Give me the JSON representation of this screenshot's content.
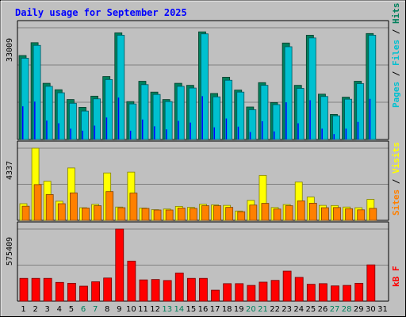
{
  "chart_data": [
    {
      "type": "bar",
      "title": "Daily usage for September 2025",
      "ymax_label": "33009",
      "ylim": [
        0,
        33009
      ],
      "categories": [
        "1",
        "2",
        "3",
        "4",
        "5",
        "6",
        "7",
        "8",
        "9",
        "10",
        "11",
        "12",
        "13",
        "14",
        "15",
        "16",
        "17",
        "18",
        "19",
        "20",
        "21",
        "22",
        "23",
        "24",
        "25",
        "26",
        "27",
        "28",
        "29",
        "30",
        "31"
      ],
      "weekend_days": [
        6,
        7,
        13,
        14,
        20,
        21,
        27,
        28
      ],
      "series": [
        {
          "name": "Hits",
          "color": "#00805c",
          "values": [
            24800,
            28600,
            16600,
            14700,
            11800,
            9500,
            12800,
            18600,
            31500,
            11200,
            17200,
            14000,
            11800,
            16600,
            16000,
            31800,
            13600,
            18400,
            14600,
            9600,
            16800,
            10900,
            28500,
            16000,
            30800,
            13400,
            7400,
            12500,
            17200,
            31300,
            0
          ]
        },
        {
          "name": "Files",
          "color": "#00c0d0",
          "values": [
            24000,
            27800,
            15700,
            13800,
            10700,
            8400,
            12000,
            17700,
            30800,
            10500,
            16200,
            13300,
            11200,
            15700,
            15200,
            31200,
            12600,
            17500,
            14000,
            8800,
            16000,
            10300,
            27400,
            15100,
            30000,
            12700,
            7000,
            11900,
            16500,
            30800,
            0
          ]
        },
        {
          "name": "Pages",
          "color": "#0000ff",
          "values": [
            9800,
            11200,
            5600,
            4800,
            3200,
            2600,
            4100,
            6500,
            12400,
            2600,
            5900,
            3900,
            3000,
            5500,
            5000,
            12800,
            3600,
            6200,
            3800,
            2200,
            5400,
            2400,
            11000,
            4800,
            11600,
            3200,
            1600,
            3200,
            5200,
            12000,
            0
          ]
        }
      ]
    },
    {
      "type": "bar",
      "ymax_label": "4337",
      "ylim": [
        0,
        4337
      ],
      "categories": [
        "1",
        "2",
        "3",
        "4",
        "5",
        "6",
        "7",
        "8",
        "9",
        "10",
        "11",
        "12",
        "13",
        "14",
        "15",
        "16",
        "17",
        "18",
        "19",
        "20",
        "21",
        "22",
        "23",
        "24",
        "25",
        "26",
        "27",
        "28",
        "29",
        "30",
        "31"
      ],
      "series": [
        {
          "name": "Visits",
          "color": "#ffff00",
          "values": [
            1000,
            4337,
            2350,
            1150,
            3150,
            760,
            960,
            2850,
            800,
            2900,
            740,
            640,
            680,
            840,
            780,
            970,
            930,
            900,
            560,
            1200,
            2700,
            770,
            950,
            2300,
            1400,
            900,
            890,
            800,
            760,
            1260,
            0
          ]
        },
        {
          "name": "Sites",
          "color": "#ff8000",
          "values": [
            850,
            2150,
            1550,
            1000,
            1650,
            740,
            880,
            1730,
            760,
            1640,
            720,
            620,
            620,
            740,
            720,
            880,
            880,
            780,
            520,
            920,
            1020,
            680,
            880,
            1170,
            1030,
            760,
            770,
            700,
            630,
            720,
            0
          ]
        }
      ]
    },
    {
      "type": "bar",
      "ymax_label": "575409",
      "ylim": [
        0,
        575409
      ],
      "categories": [
        "1",
        "2",
        "3",
        "4",
        "5",
        "6",
        "7",
        "8",
        "9",
        "10",
        "11",
        "12",
        "13",
        "14",
        "15",
        "16",
        "17",
        "18",
        "19",
        "20",
        "21",
        "22",
        "23",
        "24",
        "25",
        "26",
        "27",
        "28",
        "29",
        "30",
        "31"
      ],
      "series": [
        {
          "name": "kB F",
          "color": "#ff0000",
          "values": [
            182000,
            182000,
            182000,
            150000,
            143000,
            120000,
            155000,
            185000,
            575409,
            320000,
            170000,
            173000,
            165000,
            225000,
            182000,
            182000,
            88000,
            140000,
            140000,
            126000,
            152000,
            166000,
            240000,
            190000,
            135000,
            140000,
            122000,
            126000,
            143000,
            290000,
            0
          ]
        }
      ]
    }
  ]
}
